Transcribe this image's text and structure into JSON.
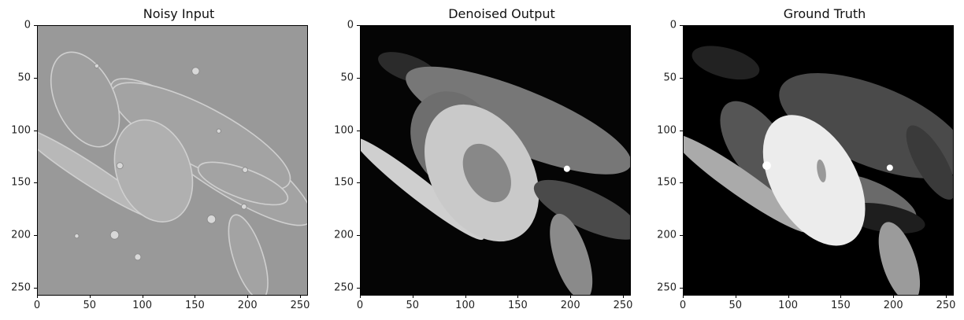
{
  "figure": {
    "panels": [
      {
        "title": "Noisy Input"
      },
      {
        "title": "Denoised Output"
      },
      {
        "title": "Ground Truth"
      }
    ],
    "x_ticks": [
      "0",
      "50",
      "100",
      "150",
      "200",
      "250"
    ],
    "y_ticks": [
      "0",
      "50",
      "100",
      "150",
      "200",
      "250"
    ],
    "x_range": [
      0,
      256
    ],
    "y_range": [
      0,
      256
    ]
  }
}
